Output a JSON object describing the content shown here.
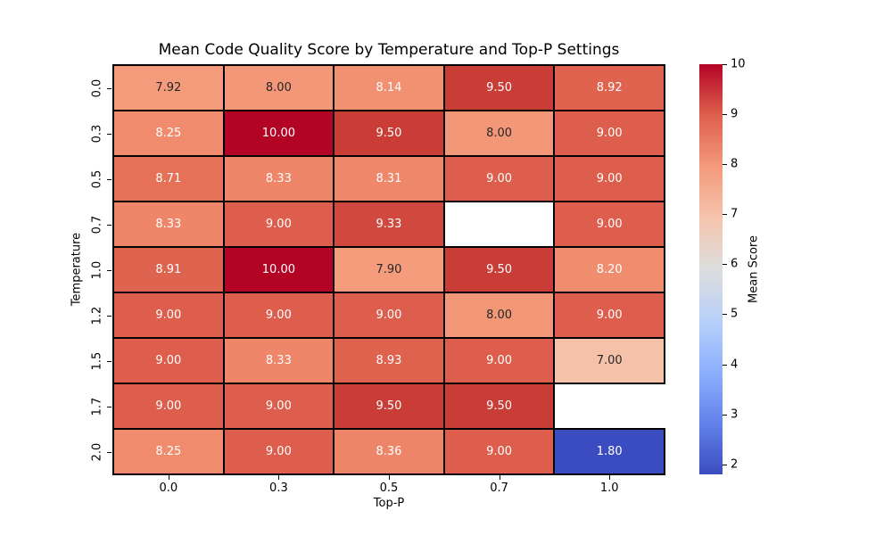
{
  "figure": {
    "background": "#ffffff"
  },
  "chart_data": {
    "type": "heatmap",
    "title": "Mean Code Quality Score by Temperature and Top-P Settings",
    "xlabel": "Top-P",
    "ylabel": "Temperature",
    "x_tick_labels": [
      "0.0",
      "0.3",
      "0.5",
      "0.7",
      "1.0"
    ],
    "y_tick_labels": [
      "0.0",
      "0.3",
      "0.5",
      "0.7",
      "1.0",
      "1.2",
      "1.5",
      "1.7",
      "2.0"
    ],
    "values": [
      [
        7.92,
        8.0,
        8.14,
        9.5,
        8.92
      ],
      [
        8.25,
        10.0,
        9.5,
        8.0,
        9.0
      ],
      [
        8.71,
        8.33,
        8.31,
        9.0,
        9.0
      ],
      [
        8.33,
        9.0,
        9.33,
        null,
        9.0
      ],
      [
        8.91,
        10.0,
        7.9,
        9.5,
        8.2
      ],
      [
        9.0,
        9.0,
        9.0,
        8.0,
        9.0
      ],
      [
        9.0,
        8.33,
        8.93,
        9.0,
        7.0
      ],
      [
        9.0,
        9.0,
        9.5,
        9.5,
        null
      ],
      [
        8.25,
        9.0,
        8.36,
        9.0,
        1.8
      ]
    ],
    "annotations": [
      [
        "7.92",
        "8.00",
        "8.14",
        "9.50",
        "8.92"
      ],
      [
        "8.25",
        "10.00",
        "9.50",
        "8.00",
        "9.00"
      ],
      [
        "8.71",
        "8.33",
        "8.31",
        "9.00",
        "9.00"
      ],
      [
        "8.33",
        "9.00",
        "9.33",
        null,
        "9.00"
      ],
      [
        "8.91",
        "10.00",
        "7.90",
        "9.50",
        "8.20"
      ],
      [
        "9.00",
        "9.00",
        "9.00",
        "8.00",
        "9.00"
      ],
      [
        "9.00",
        "8.33",
        "8.93",
        "9.00",
        "7.00"
      ],
      [
        "9.00",
        "9.00",
        "9.50",
        "9.50",
        null
      ],
      [
        "8.25",
        "9.00",
        "8.36",
        "9.00",
        "1.80"
      ]
    ],
    "cell_colors": [
      [
        "#F49B7C",
        "#F39779",
        "#F29072",
        "#CA3D37",
        "#DF634F"
      ],
      [
        "#F08B6D",
        "#B40426",
        "#CA3D37",
        "#F39779",
        "#DD5E4C"
      ],
      [
        "#E57158",
        "#EF8669",
        "#EF876A",
        "#DD5E4C",
        "#DD5E4C"
      ],
      [
        "#EF8669",
        "#DD5E4C",
        "#D1493E",
        null,
        "#DD5E4C"
      ],
      [
        "#DF6450",
        "#B40426",
        "#F59C7D",
        "#CA3D37",
        "#F18D6F"
      ],
      [
        "#DD5E4C",
        "#DD5E4C",
        "#DD5E4C",
        "#F39779",
        "#DD5E4C"
      ],
      [
        "#DD5E4C",
        "#EF8669",
        "#DF624F",
        "#DD5E4C",
        "#F6C1A9"
      ],
      [
        "#DD5E4C",
        "#DD5E4C",
        "#CA3D37",
        "#CA3D37",
        null
      ],
      [
        "#F08B6D",
        "#DD5E4C",
        "#EE8568",
        "#DD5E4C",
        "#3B4CC0"
      ]
    ],
    "colormap": "coolwarm",
    "vmin": 1.8,
    "vmax": 10.0,
    "grid": {
      "line_color": "#000000",
      "line_width": 2
    },
    "missing_cell_color": "#ffffff",
    "annot_text_dark": "#262626",
    "annot_text_light": "#ffffff",
    "luminance_threshold": 0.408,
    "colorbar": {
      "label": "Mean Score",
      "tick_values": [
        10,
        9,
        8,
        7,
        6,
        5,
        4,
        3,
        2
      ],
      "tick_labels": [
        "10",
        "9",
        "8",
        "7",
        "6",
        "5",
        "4",
        "3",
        "2"
      ],
      "gradient_stops": [
        {
          "pos": 0.0,
          "color": "#3B4CC0"
        },
        {
          "pos": 0.125,
          "color": "#6282EA"
        },
        {
          "pos": 0.25,
          "color": "#8DB0FE"
        },
        {
          "pos": 0.375,
          "color": "#B8D0F9"
        },
        {
          "pos": 0.5,
          "color": "#DDDDDD"
        },
        {
          "pos": 0.625,
          "color": "#F5C4AD"
        },
        {
          "pos": 0.75,
          "color": "#F49A7B"
        },
        {
          "pos": 0.875,
          "color": "#DE604D"
        },
        {
          "pos": 1.0,
          "color": "#B40426"
        }
      ]
    }
  }
}
